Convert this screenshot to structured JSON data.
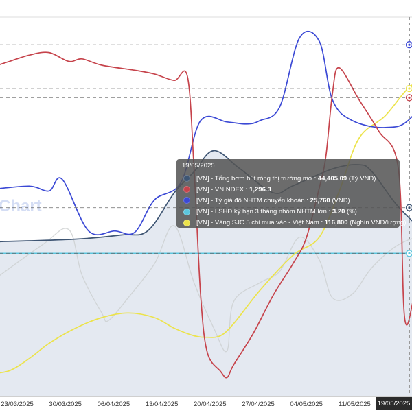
{
  "chart_data": {
    "type": "line",
    "watermark": "Chart",
    "x_ticks": [
      "23/03/2025",
      "30/03/2025",
      "06/04/2025",
      "13/04/2025",
      "20/04/2025",
      "27/04/2025",
      "04/05/2025",
      "11/05/2025"
    ],
    "x_last_label": "19/05/2025",
    "legend": "none",
    "grid": false,
    "series": [
      {
        "name": "[VN] - Tổng bơm hút ròng thị trường mở",
        "color": "#3e5573",
        "fill": "#dfe5ee",
        "unit": "(Tỷ VND)",
        "display_value": "44,405.09",
        "axis": {
          "min": -90000,
          "max": 180000
        },
        "points": [
          [
            0,
            20000
          ],
          [
            13,
            22000
          ],
          [
            20,
            25000
          ],
          [
            24,
            28000
          ],
          [
            28,
            55000
          ],
          [
            31,
            70000
          ],
          [
            34,
            85000
          ],
          [
            38,
            72000
          ],
          [
            43,
            55000
          ],
          [
            46,
            60000
          ],
          [
            52,
            72000
          ],
          [
            56,
            75000
          ],
          [
            58,
            70000
          ],
          [
            62,
            45000
          ],
          [
            66,
            30000
          ],
          [
            70,
            38000
          ],
          [
            75,
            25000
          ],
          [
            80,
            37000
          ],
          [
            84,
            40000
          ],
          [
            87,
            30000
          ],
          [
            90,
            60000
          ],
          [
            94,
            100000
          ],
          [
            97,
            120000
          ],
          [
            100,
            110000
          ],
          [
            103,
            80000
          ],
          [
            106,
            95000
          ],
          [
            109,
            93000
          ],
          [
            112,
            94000
          ],
          [
            113,
            70000
          ],
          [
            116,
            45000
          ],
          [
            118,
            40000
          ],
          [
            120,
            25000
          ],
          [
            123,
            15000
          ],
          [
            126,
            18000
          ],
          [
            128,
            20000
          ],
          [
            129,
            30000
          ],
          [
            131,
            48000
          ],
          [
            133,
            60000
          ],
          [
            135,
            40000
          ],
          [
            138,
            30000
          ],
          [
            140,
            40000
          ],
          [
            143,
            62000
          ],
          [
            147,
            52000
          ],
          [
            152,
            46000
          ],
          [
            156,
            43000
          ],
          [
            160,
            44405
          ]
        ]
      },
      {
        "name": "[VN] - VNINDEX",
        "color": "#c6434b",
        "unit": "",
        "display_value": "1,296.3",
        "axis": {
          "min": 1060,
          "max": 1360
        },
        "points": [
          [
            0,
            1320
          ],
          [
            3,
            1325
          ],
          [
            6,
            1330
          ],
          [
            9,
            1332
          ],
          [
            12,
            1325
          ],
          [
            14,
            1327
          ],
          [
            17,
            1322
          ],
          [
            22,
            1318
          ],
          [
            25,
            1315
          ],
          [
            28,
            1310
          ],
          [
            30,
            1313
          ],
          [
            31,
            1240
          ],
          [
            32,
            1140
          ],
          [
            33,
            1095
          ],
          [
            35,
            1080
          ],
          [
            36,
            1075
          ],
          [
            37,
            1085
          ],
          [
            40,
            1110
          ],
          [
            43,
            1140
          ],
          [
            46,
            1165
          ],
          [
            48,
            1185
          ],
          [
            50,
            1225
          ],
          [
            51,
            1250
          ],
          [
            52,
            1300
          ],
          [
            53,
            1320
          ],
          [
            56,
            1295
          ],
          [
            59,
            1270
          ],
          [
            62,
            1240
          ],
          [
            63,
            1120
          ],
          [
            65,
            1150
          ],
          [
            68,
            1160
          ],
          [
            72,
            1163
          ],
          [
            77,
            1168
          ],
          [
            82,
            1175
          ],
          [
            87,
            1185
          ],
          [
            92,
            1185
          ],
          [
            96,
            1188
          ],
          [
            99,
            1195
          ],
          [
            101,
            1208
          ],
          [
            103,
            1200
          ],
          [
            104,
            1195
          ],
          [
            105,
            1202
          ],
          [
            107,
            1208
          ],
          [
            108,
            1200
          ],
          [
            109,
            1190
          ],
          [
            110,
            1182
          ],
          [
            112,
            1176
          ],
          [
            114,
            1170
          ],
          [
            116,
            1180
          ],
          [
            118,
            1200
          ],
          [
            120,
            1230
          ],
          [
            122,
            1250
          ],
          [
            123,
            1230
          ],
          [
            125,
            1220
          ],
          [
            127,
            1215
          ],
          [
            129,
            1210
          ],
          [
            130,
            1215
          ],
          [
            133,
            1225
          ],
          [
            137,
            1245
          ],
          [
            141,
            1258
          ],
          [
            144,
            1275
          ],
          [
            147,
            1297
          ],
          [
            150,
            1315
          ],
          [
            154,
            1305
          ],
          [
            157,
            1300
          ],
          [
            160,
            1296.3
          ]
        ]
      },
      {
        "name": "[VN] - Tỷ giá đô NHTM chuyển khoản",
        "color": "#3b49d5",
        "unit": "(VND)",
        "display_value": "25,760",
        "axis": {
          "min": 25250,
          "max": 25800
        },
        "points": [
          [
            0,
            25550
          ],
          [
            6,
            25555
          ],
          [
            9,
            25548
          ],
          [
            11,
            25565
          ],
          [
            15,
            25490
          ],
          [
            19,
            25490
          ],
          [
            22,
            25488
          ],
          [
            25,
            25535
          ],
          [
            29,
            25560
          ],
          [
            32,
            25650
          ],
          [
            36,
            25648
          ],
          [
            39,
            25645
          ],
          [
            41,
            25650
          ],
          [
            44,
            25670
          ],
          [
            47,
            25770
          ],
          [
            50,
            25765
          ],
          [
            52,
            25680
          ],
          [
            55,
            25650
          ],
          [
            60,
            25640
          ],
          [
            64,
            25655
          ],
          [
            70,
            25740
          ],
          [
            74,
            25735
          ],
          [
            80,
            25735
          ],
          [
            84,
            25760
          ],
          [
            88,
            25760
          ],
          [
            90,
            25775
          ],
          [
            94,
            25770
          ],
          [
            98,
            25765
          ],
          [
            103,
            25768
          ],
          [
            107,
            25765
          ],
          [
            110,
            25755
          ],
          [
            113,
            25745
          ],
          [
            117,
            25752
          ],
          [
            120,
            25755
          ],
          [
            124,
            25770
          ],
          [
            126,
            25775
          ],
          [
            128,
            25760
          ],
          [
            130,
            25752
          ],
          [
            134,
            25745
          ],
          [
            138,
            25740
          ],
          [
            141,
            25745
          ],
          [
            145,
            25748
          ],
          [
            148,
            25745
          ],
          [
            150,
            25750
          ],
          [
            155,
            25752
          ],
          [
            160,
            25760
          ]
        ]
      },
      {
        "name": "[VN] - LSHĐ kỳ hạn 3 tháng nhóm NHTM lớn",
        "color": "#5cc6de",
        "unit": "(%)",
        "display_value": "3.20",
        "axis": {
          "min": 1.2,
          "max": 6.5
        },
        "points": [
          [
            0,
            3.2
          ],
          [
            10,
            3.2
          ],
          [
            20,
            3.2
          ],
          [
            30,
            3.2
          ],
          [
            40,
            3.2
          ],
          [
            50,
            3.2
          ],
          [
            60,
            3.2
          ],
          [
            70,
            3.2
          ],
          [
            80,
            3.2
          ],
          [
            90,
            3.2
          ],
          [
            100,
            3.2
          ],
          [
            110,
            3.2
          ],
          [
            120,
            3.2
          ],
          [
            130,
            3.2
          ],
          [
            140,
            3.2
          ],
          [
            150,
            3.2
          ],
          [
            160,
            3.2
          ]
        ]
      },
      {
        "name": "[VN] - Vàng SJC 5 chỉ mua vào - Việt Nam",
        "color": "#ece34a",
        "unit": "(Nghìn VND/lượng)",
        "display_value": "116,800",
        "axis": {
          "min": 96500,
          "max": 121500
        },
        "points": [
          [
            0,
            98000
          ],
          [
            3,
            98200
          ],
          [
            6,
            99000
          ],
          [
            9,
            100000
          ],
          [
            13,
            101000
          ],
          [
            17,
            101700
          ],
          [
            21,
            102000
          ],
          [
            25,
            101700
          ],
          [
            28,
            101000
          ],
          [
            31,
            100500
          ],
          [
            33,
            100400
          ],
          [
            35,
            100500
          ],
          [
            37,
            101300
          ],
          [
            41,
            103500
          ],
          [
            46,
            105800
          ],
          [
            50,
            107000
          ],
          [
            53,
            110000
          ],
          [
            56,
            113500
          ],
          [
            60,
            115000
          ],
          [
            64,
            117000
          ],
          [
            68,
            117500
          ],
          [
            71,
            117000
          ],
          [
            74,
            117000
          ],
          [
            76,
            117200
          ],
          [
            78,
            115500
          ],
          [
            80,
            121000
          ],
          [
            82,
            117000
          ],
          [
            85,
            117000
          ],
          [
            87,
            116800
          ],
          [
            89,
            117300
          ],
          [
            91,
            116800
          ],
          [
            93,
            117000
          ],
          [
            96,
            117500
          ],
          [
            100,
            118500
          ],
          [
            103,
            118600
          ],
          [
            107,
            118800
          ],
          [
            110,
            119200
          ],
          [
            113,
            119500
          ],
          [
            116,
            119300
          ],
          [
            118,
            119000
          ],
          [
            122,
            119400
          ],
          [
            124,
            119700
          ],
          [
            126,
            118800
          ],
          [
            128,
            118200
          ],
          [
            130,
            118000
          ],
          [
            132,
            118300
          ],
          [
            134,
            117500
          ],
          [
            137,
            117600
          ],
          [
            140,
            118600
          ],
          [
            143,
            117800
          ],
          [
            146,
            117200
          ],
          [
            149,
            116500
          ],
          [
            153,
            116700
          ],
          [
            156,
            116900
          ],
          [
            160,
            116800
          ]
        ]
      },
      {
        "name": "",
        "color": "#c9cccc",
        "faint": true,
        "axis": {
          "min": 0,
          "max": 100
        },
        "points": [
          [
            0,
            30
          ],
          [
            8,
            40
          ],
          [
            12,
            44
          ],
          [
            14,
            32
          ],
          [
            17,
            22
          ],
          [
            18,
            20
          ],
          [
            21,
            26
          ],
          [
            25,
            35
          ],
          [
            28,
            45
          ],
          [
            31,
            30
          ],
          [
            34,
            18
          ],
          [
            36,
            12
          ],
          [
            37,
            25
          ],
          [
            41,
            30
          ],
          [
            44,
            33
          ],
          [
            47,
            42
          ],
          [
            50,
            36
          ],
          [
            52,
            26
          ],
          [
            55,
            27
          ],
          [
            58,
            34
          ],
          [
            62,
            40
          ],
          [
            66,
            42
          ],
          [
            68,
            38
          ],
          [
            70,
            44
          ],
          [
            72,
            36
          ],
          [
            76,
            32
          ],
          [
            78,
            34
          ],
          [
            82,
            52
          ],
          [
            84,
            55
          ],
          [
            86,
            50
          ],
          [
            88,
            10
          ],
          [
            91,
            10
          ],
          [
            94,
            11
          ],
          [
            98,
            22
          ],
          [
            100,
            32
          ],
          [
            102,
            47
          ],
          [
            104,
            38
          ],
          [
            107,
            32
          ],
          [
            112,
            32
          ],
          [
            117,
            34
          ],
          [
            122,
            36
          ],
          [
            128,
            36
          ],
          [
            134,
            38
          ],
          [
            140,
            35
          ],
          [
            145,
            34
          ],
          [
            150,
            36
          ],
          [
            154,
            34
          ]
        ]
      }
    ],
    "tooltip": {
      "date": "19/05/2025",
      "rows": [
        {
          "label": "[VN] - Tổng bơm hút ròng thị trường mở :",
          "value": "44,405.09",
          "unit": "(Tỷ VND)",
          "color": "#3e5573"
        },
        {
          "label": "[VN] - VNINDEX :",
          "value": "1,296.3",
          "unit": "",
          "color": "#c6434b"
        },
        {
          "label": "[VN] - Tỷ giá đô NHTM chuyển khoản :",
          "value": "25,760",
          "unit": "(VND)",
          "color": "#3b49d5"
        },
        {
          "label": "[VN] - LSHĐ kỳ hạn 3 tháng nhóm NHTM lớn :",
          "value": "3.20",
          "unit": "(%)",
          "color": "#5cc6de"
        },
        {
          "label": "[VN] - Vàng SJC 5 chỉ mua vào - Việt Nam :",
          "value": "116,800",
          "unit": "(Nghìn VND/lượng)",
          "color": "#ece34a"
        }
      ]
    }
  }
}
